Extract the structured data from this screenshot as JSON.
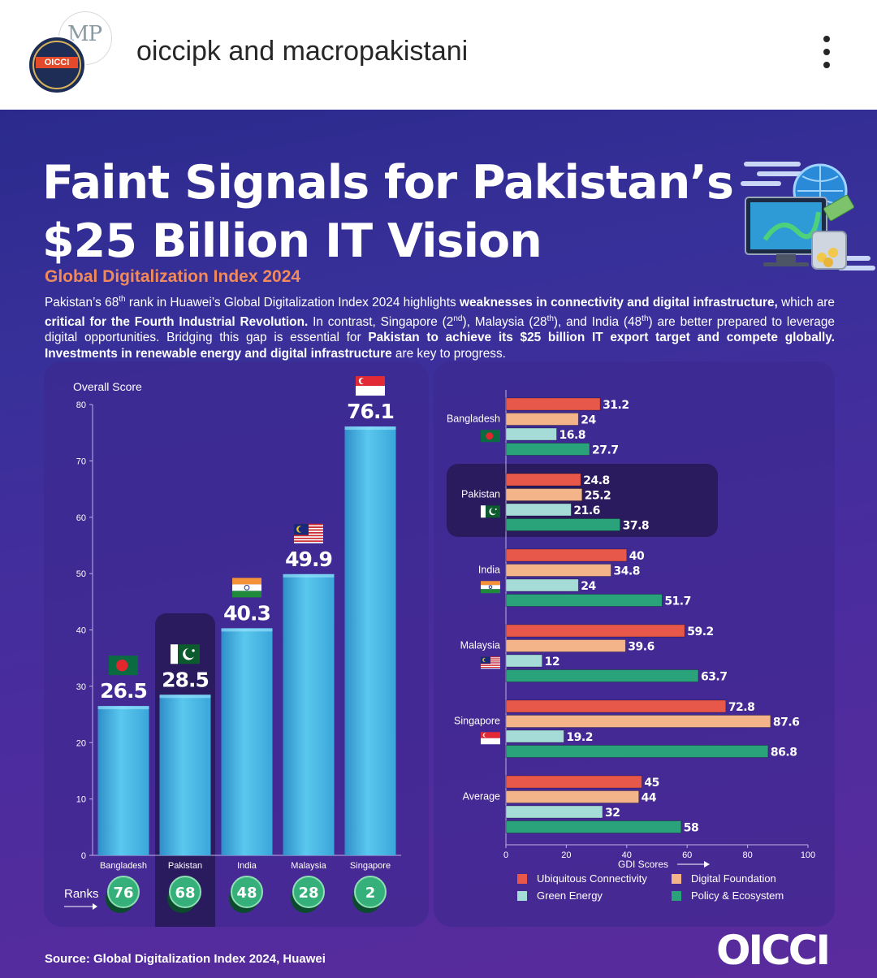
{
  "header": {
    "account_primary": "oiccipk",
    "connector": "and",
    "account_secondary": "macropakistani",
    "avatar_front_text": "OICCI",
    "avatar_back_text": "MP"
  },
  "poster": {
    "title_line1": "Faint Signals for Pakistan’s",
    "title_line2": "$25 Billion IT Vision",
    "subtitle": "Global Digitalization Index 2024",
    "body_parts": [
      {
        "t": "Pakistan’s 68",
        "b": false
      },
      {
        "t": "th",
        "b": false,
        "sup": true
      },
      {
        "t": " rank in Huawei’s Global Digitalization Index 2024 highlights ",
        "b": false
      },
      {
        "t": "weaknesses in connectivity and digital infrastructure,",
        "b": true
      },
      {
        "t": " which are ",
        "b": false
      },
      {
        "t": "critical for the Fourth Industrial Revolution.",
        "b": true
      },
      {
        "t": " In contrast, Singapore (2",
        "b": false
      },
      {
        "t": "nd",
        "b": false,
        "sup": true
      },
      {
        "t": "), Malaysia (28",
        "b": false
      },
      {
        "t": "th",
        "b": false,
        "sup": true
      },
      {
        "t": "), and India (48",
        "b": false
      },
      {
        "t": "th",
        "b": false,
        "sup": true
      },
      {
        "t": ") are better prepared to leverage digital opportunities. Bridging this gap is essential for ",
        "b": false
      },
      {
        "t": "Pakistan to achieve its $25 billion IT export target and compete globally. Investments in renewable energy and digital infrastructure",
        "b": true
      },
      {
        "t": " are key to progress.",
        "b": false
      }
    ],
    "source": "Source: Global Digitalization Index 2024, Huawei",
    "brand": "OICCI"
  },
  "colors": {
    "bar_fill": "#5ac8ee",
    "ubiquitous": "#e8584a",
    "foundation": "#f4b48a",
    "green": "#a6dcd8",
    "policy": "#2aa37a",
    "highlight": "#2a1a5e"
  },
  "chart_data": [
    {
      "type": "bar",
      "ylabel": "Overall Score",
      "ylim": [
        0,
        80
      ],
      "yticks": [
        0,
        10,
        20,
        30,
        40,
        50,
        60,
        70,
        80
      ],
      "categories": [
        "Bangladesh",
        "Pakistan",
        "India",
        "Malaysia",
        "Singapore"
      ],
      "values": [
        26.5,
        28.5,
        40.3,
        49.9,
        76.1
      ],
      "value_labels": [
        "26.5",
        "28.5",
        "40.3",
        "49.9",
        "76.1"
      ],
      "ranks_label": "Ranks",
      "ranks": [
        76,
        68,
        48,
        28,
        2
      ],
      "highlighted": "Pakistan",
      "grid": false
    },
    {
      "type": "bar",
      "orientation": "horizontal",
      "xlabel": "GDI Scores",
      "xlim": [
        0,
        100
      ],
      "xticks": [
        0,
        20,
        40,
        60,
        80,
        100
      ],
      "categories": [
        "Bangladesh",
        "Pakistan",
        "India",
        "Malaysia",
        "Singapore",
        "Average"
      ],
      "series": [
        {
          "name": "Ubiquitous Connectivity",
          "values": [
            31.2,
            24.8,
            40,
            59.2,
            72.8,
            45
          ],
          "labels": [
            "31.2",
            "24.8",
            "40",
            "59.2",
            "72.8",
            "45"
          ]
        },
        {
          "name": "Digital Foundation",
          "values": [
            24,
            25.2,
            34.8,
            39.6,
            87.6,
            44
          ],
          "labels": [
            "24",
            "25.2",
            "34.8",
            "39.6",
            "87.6",
            "44"
          ]
        },
        {
          "name": "Green Energy",
          "values": [
            16.8,
            21.6,
            24,
            12,
            19.2,
            32
          ],
          "labels": [
            "16.8",
            "21.6",
            "24",
            "12",
            "19.2",
            "32"
          ]
        },
        {
          "name": "Policy & Ecosystem",
          "values": [
            27.7,
            37.8,
            51.7,
            63.7,
            86.8,
            58
          ],
          "labels": [
            "27.7",
            "37.8",
            "51.7",
            "63.7",
            "86.8",
            "58"
          ]
        }
      ],
      "highlighted": "Pakistan",
      "legend_position": "bottom",
      "grid": false
    }
  ]
}
